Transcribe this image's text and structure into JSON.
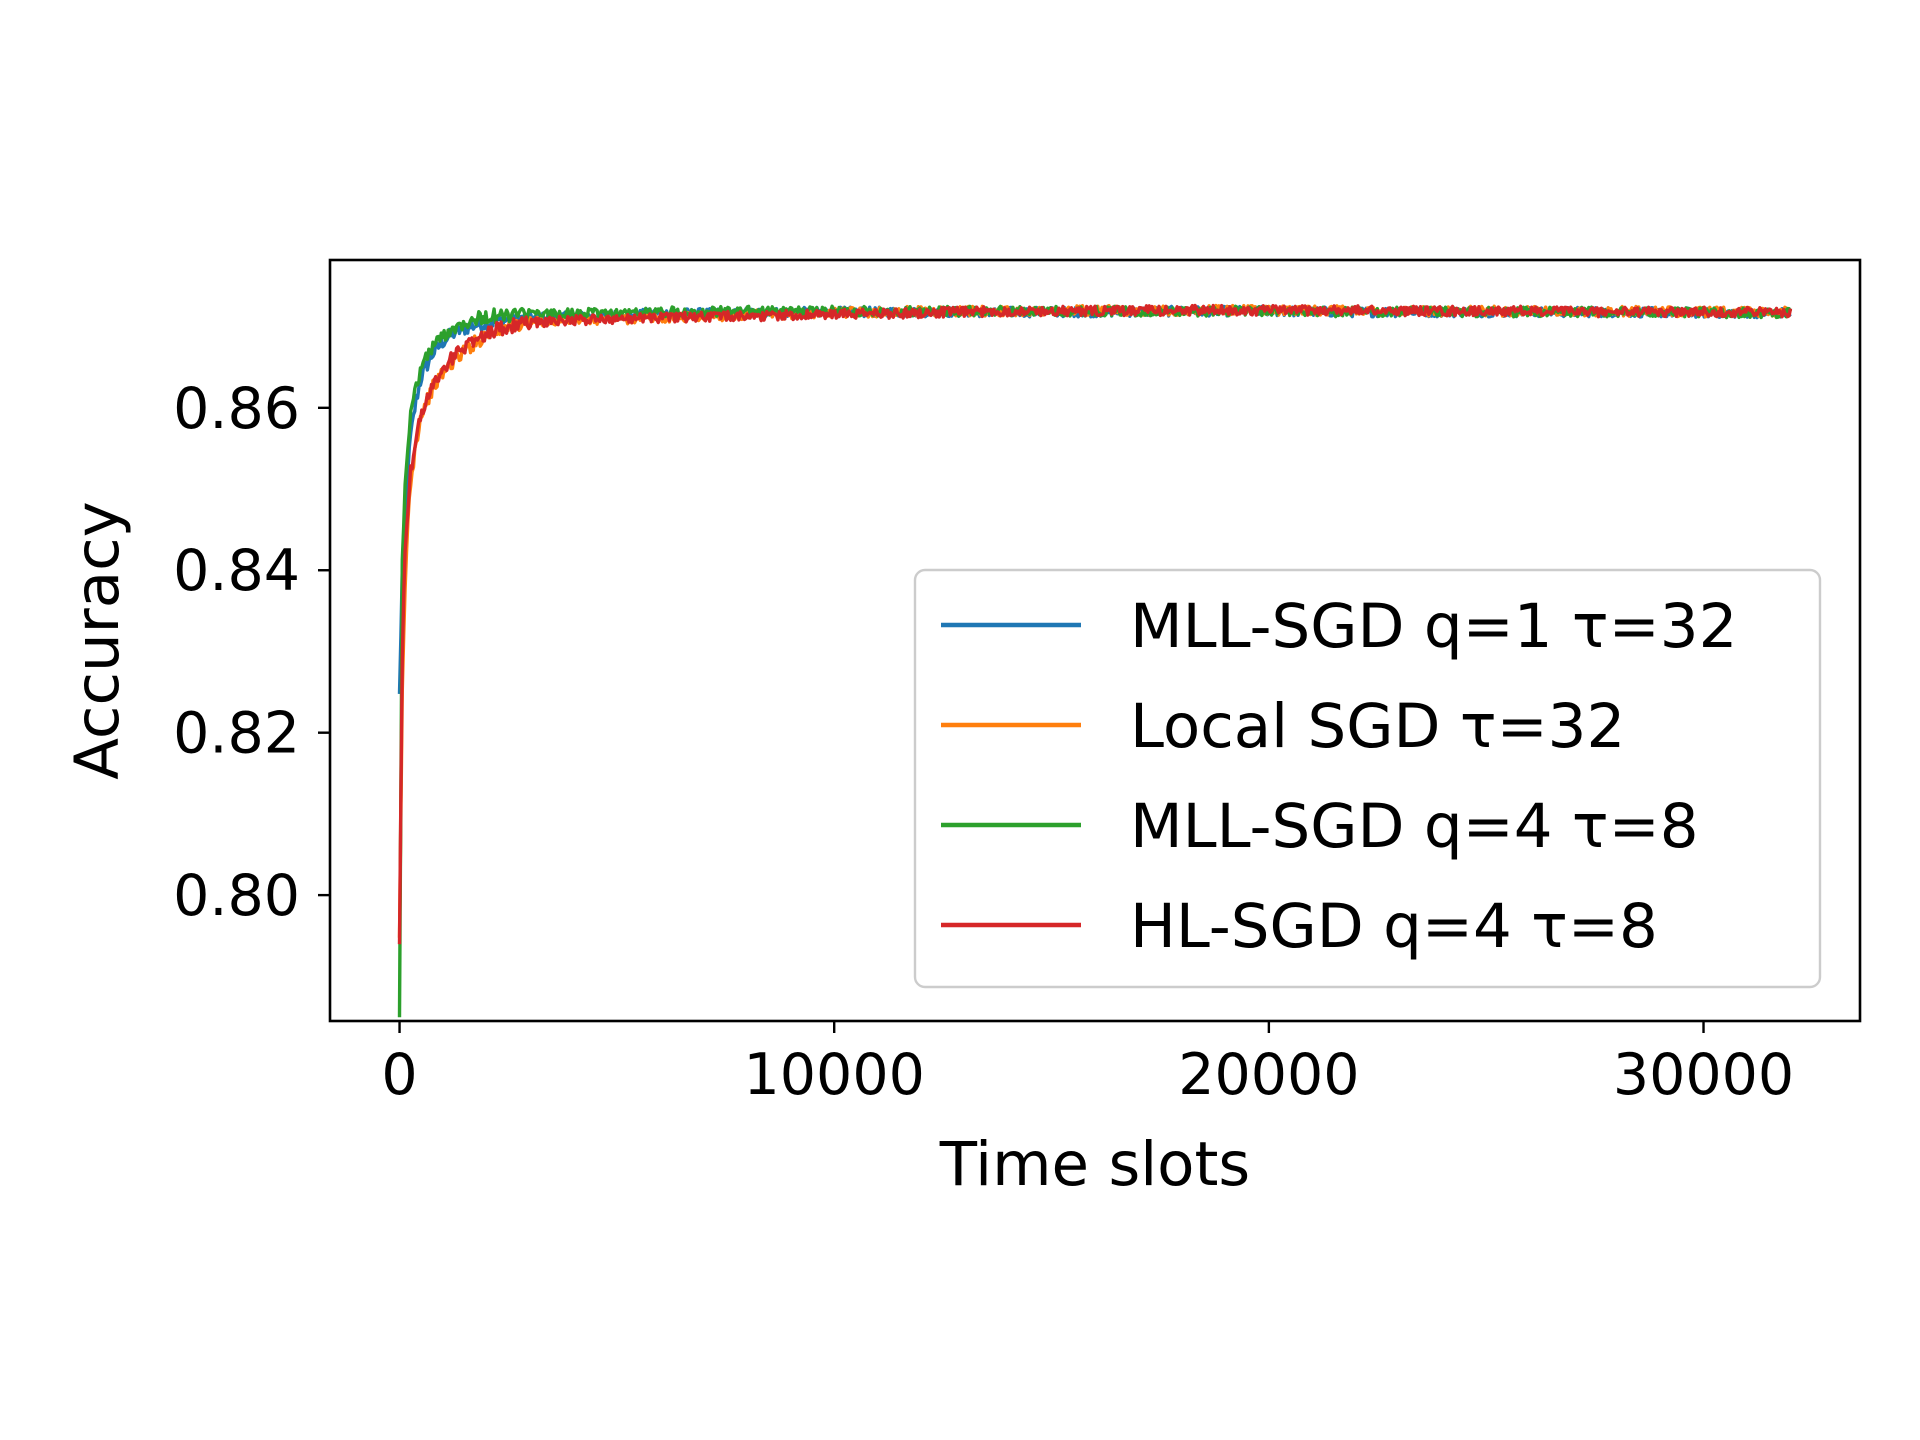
{
  "chart_data": {
    "type": "line",
    "title": "",
    "xlabel": "Time slots",
    "ylabel": "Accuracy",
    "xlim": [
      -1600,
      33600
    ],
    "ylim": [
      0.7845,
      0.8782
    ],
    "xticks": [
      0,
      10000,
      20000,
      30000
    ],
    "xtick_labels": [
      "0",
      "10000",
      "20000",
      "30000"
    ],
    "yticks": [
      0.8,
      0.82,
      0.84,
      0.86
    ],
    "ytick_labels": [
      "0.80",
      "0.82",
      "0.84",
      "0.86"
    ],
    "grid": false,
    "legend_position": "lower right",
    "series": [
      {
        "name": "MLL-SGD q=1 τ=32",
        "color": "#1f77b4",
        "x": [
          0,
          64,
          128,
          192,
          256,
          384,
          512,
          768,
          1024,
          1280,
          1600,
          2000,
          2500,
          3000,
          4000,
          5000,
          6000,
          8000,
          10000,
          12000,
          14000,
          16000,
          18000,
          20000,
          22000,
          24000,
          26000,
          28000,
          30000,
          32000
        ],
        "values": [
          0.8245,
          0.84,
          0.847,
          0.8525,
          0.8565,
          0.861,
          0.864,
          0.8667,
          0.8683,
          0.8693,
          0.87,
          0.8705,
          0.8708,
          0.8711,
          0.8712,
          0.8714,
          0.8716,
          0.8717,
          0.8718,
          0.8718,
          0.8718,
          0.8718,
          0.8719,
          0.8719,
          0.8718,
          0.8718,
          0.8718,
          0.8718,
          0.8717,
          0.8717
        ]
      },
      {
        "name": "Local SGD τ=32",
        "color": "#ff7f0e",
        "x": [
          0,
          64,
          128,
          192,
          256,
          384,
          512,
          768,
          1024,
          1280,
          1600,
          2000,
          2500,
          3000,
          4000,
          5000,
          6000,
          8000,
          10000,
          12000,
          14000,
          16000,
          18000,
          20000,
          22000,
          24000,
          26000,
          28000,
          30000,
          32000
        ],
        "values": [
          0.794,
          0.825,
          0.838,
          0.846,
          0.851,
          0.856,
          0.8595,
          0.8625,
          0.8645,
          0.866,
          0.8675,
          0.869,
          0.87,
          0.8705,
          0.8708,
          0.8709,
          0.8711,
          0.8714,
          0.8717,
          0.8719,
          0.8719,
          0.872,
          0.872,
          0.872,
          0.872,
          0.8719,
          0.8719,
          0.8719,
          0.8718,
          0.8718
        ]
      },
      {
        "name": "MLL-SGD q=4 τ=8",
        "color": "#2ca02c",
        "x": [
          0,
          64,
          128,
          192,
          256,
          384,
          512,
          768,
          1024,
          1280,
          1600,
          2000,
          2500,
          3000,
          4000,
          5000,
          6000,
          8000,
          10000,
          12000,
          14000,
          16000,
          18000,
          20000,
          22000,
          24000,
          26000,
          28000,
          30000,
          32000
        ],
        "values": [
          0.7855,
          0.842,
          0.85,
          0.8555,
          0.859,
          0.8628,
          0.8652,
          0.8676,
          0.869,
          0.87,
          0.8708,
          0.8712,
          0.8714,
          0.8715,
          0.8716,
          0.8717,
          0.8718,
          0.8719,
          0.8719,
          0.8719,
          0.8719,
          0.8719,
          0.8719,
          0.8719,
          0.8718,
          0.8718,
          0.8718,
          0.8718,
          0.8717,
          0.8717
        ]
      },
      {
        "name": "HL-SGD q=4 τ=8",
        "color": "#d62728",
        "x": [
          0,
          64,
          128,
          192,
          256,
          384,
          512,
          768,
          1024,
          1280,
          1600,
          2000,
          2500,
          3000,
          4000,
          5000,
          6000,
          8000,
          10000,
          12000,
          14000,
          16000,
          18000,
          20000,
          22000,
          24000,
          26000,
          28000,
          30000,
          32000
        ],
        "values": [
          0.794,
          0.83,
          0.842,
          0.848,
          0.852,
          0.8565,
          0.8595,
          0.8628,
          0.865,
          0.8665,
          0.868,
          0.8692,
          0.87,
          0.8705,
          0.8708,
          0.871,
          0.8711,
          0.8713,
          0.8715,
          0.8717,
          0.8719,
          0.8719,
          0.872,
          0.872,
          0.872,
          0.8719,
          0.8719,
          0.8718,
          0.8718,
          0.8718
        ]
      }
    ]
  }
}
